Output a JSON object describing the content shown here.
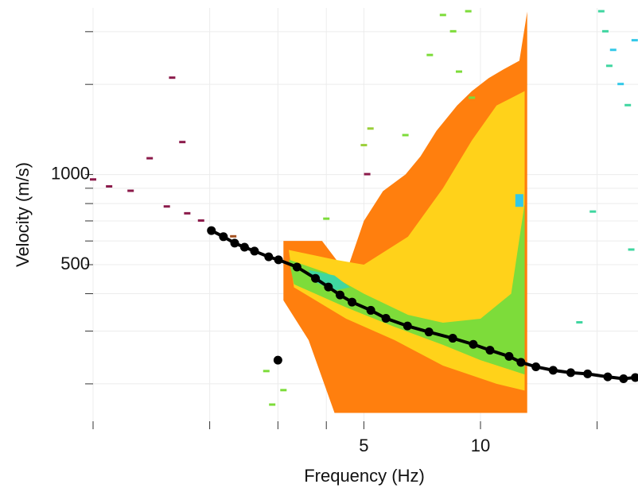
{
  "chart_data": {
    "type": "dispersion",
    "xlabel": "Frequency (Hz)",
    "ylabel": "Velocity (m/s)",
    "xscale": "log",
    "yscale": "log",
    "grid": true,
    "xlim": [
      1,
      25.5
    ],
    "ylim": [
      150,
      3600
    ],
    "xticks": [
      5,
      10
    ],
    "xticks_minor": [
      1,
      2,
      3,
      4,
      20
    ],
    "yticks": [
      500,
      1000
    ],
    "yticks_minor": [
      200,
      300,
      400,
      600,
      700,
      800,
      900,
      2000,
      3000
    ],
    "zones": [
      {
        "color": "#ff7f0e",
        "points": [
          [
            3.1,
            600
          ],
          [
            3.9,
            600
          ],
          [
            4.5,
            470
          ],
          [
            5,
            700
          ],
          [
            5.6,
            880
          ],
          [
            6.4,
            1000
          ],
          [
            7,
            1150
          ],
          [
            7.7,
            1400
          ],
          [
            8.7,
            1700
          ],
          [
            9.5,
            1900
          ],
          [
            10.5,
            2100
          ],
          [
            11.5,
            2250
          ],
          [
            12.6,
            2400
          ],
          [
            13.2,
            3500
          ],
          [
            13.2,
            160
          ],
          [
            4.2,
            160
          ],
          [
            3.6,
            280
          ],
          [
            3.1,
            380
          ]
        ]
      },
      {
        "color": "#ffd21a",
        "points": [
          [
            3.2,
            560
          ],
          [
            4.2,
            520
          ],
          [
            5,
            500
          ],
          [
            6.5,
            620
          ],
          [
            8,
            900
          ],
          [
            9.5,
            1300
          ],
          [
            11,
            1700
          ],
          [
            13,
            1900
          ],
          [
            13,
            190
          ],
          [
            11,
            200
          ],
          [
            8,
            230
          ],
          [
            6,
            280
          ],
          [
            4.5,
            330
          ],
          [
            3.3,
            420
          ]
        ]
      },
      {
        "color": "#7ddc3a",
        "points": [
          [
            3.2,
            520
          ],
          [
            4,
            470
          ],
          [
            5,
            400
          ],
          [
            6.5,
            340
          ],
          [
            8,
            320
          ],
          [
            10,
            330
          ],
          [
            12,
            400
          ],
          [
            13,
            800
          ],
          [
            13,
            215
          ],
          [
            10,
            240
          ],
          [
            8,
            270
          ],
          [
            6,
            310
          ],
          [
            4.5,
            360
          ],
          [
            3.3,
            430
          ]
        ]
      },
      {
        "color": "#3fd6a0",
        "points": [
          [
            3.6,
            480
          ],
          [
            4.2,
            460
          ],
          [
            4.6,
            420
          ],
          [
            4.2,
            410
          ],
          [
            3.7,
            440
          ]
        ]
      },
      {
        "color": "#33c8e8",
        "points": [
          [
            12.3,
            860
          ],
          [
            12.9,
            860
          ],
          [
            12.9,
            780
          ],
          [
            12.3,
            780
          ]
        ]
      }
    ],
    "cells": [
      {
        "f": 1.0,
        "v": 960,
        "color": "#8b1a4a"
      },
      {
        "f": 1.1,
        "v": 910,
        "color": "#8b1a4a"
      },
      {
        "f": 1.25,
        "v": 880,
        "color": "#8b1a4a"
      },
      {
        "f": 1.4,
        "v": 1130,
        "color": "#8b1a4a"
      },
      {
        "f": 1.55,
        "v": 780,
        "color": "#8b1a4a"
      },
      {
        "f": 1.7,
        "v": 1280,
        "color": "#8b1a4a"
      },
      {
        "f": 1.6,
        "v": 2100,
        "color": "#8b1a4a"
      },
      {
        "f": 1.75,
        "v": 740,
        "color": "#8b1a4a"
      },
      {
        "f": 1.9,
        "v": 700,
        "color": "#8b1a4a"
      },
      {
        "f": 2.3,
        "v": 620,
        "color": "#a35020"
      },
      {
        "f": 2.6,
        "v": 550,
        "color": "#7ddc3a"
      },
      {
        "f": 2.8,
        "v": 220,
        "color": "#7ddc3a"
      },
      {
        "f": 3.1,
        "v": 190,
        "color": "#7ddc3a"
      },
      {
        "f": 2.9,
        "v": 170,
        "color": "#7ddc3a"
      },
      {
        "f": 4.0,
        "v": 710,
        "color": "#7ddc3a"
      },
      {
        "f": 5.0,
        "v": 1250,
        "color": "#9bcf3a"
      },
      {
        "f": 5.1,
        "v": 1000,
        "color": "#8b1a4a"
      },
      {
        "f": 5.2,
        "v": 1420,
        "color": "#9bcf3a"
      },
      {
        "f": 6.4,
        "v": 1350,
        "color": "#7ddc3a"
      },
      {
        "f": 7.4,
        "v": 2500,
        "color": "#7ddc3a"
      },
      {
        "f": 8.0,
        "v": 3400,
        "color": "#7ddc3a"
      },
      {
        "f": 8.5,
        "v": 3000,
        "color": "#7ddc3a"
      },
      {
        "f": 8.8,
        "v": 2200,
        "color": "#7ddc3a"
      },
      {
        "f": 9.3,
        "v": 3500,
        "color": "#7ddc3a"
      },
      {
        "f": 9.5,
        "v": 1800,
        "color": "#7ddc3a"
      },
      {
        "f": 20.5,
        "v": 3500,
        "color": "#3fd6a0"
      },
      {
        "f": 21,
        "v": 3000,
        "color": "#3fd6a0"
      },
      {
        "f": 22,
        "v": 2600,
        "color": "#33c8e8"
      },
      {
        "f": 21.5,
        "v": 2300,
        "color": "#3fd6a0"
      },
      {
        "f": 23,
        "v": 2000,
        "color": "#33c8e8"
      },
      {
        "f": 24,
        "v": 1700,
        "color": "#3fd6a0"
      },
      {
        "f": 25,
        "v": 2800,
        "color": "#33c8e8"
      },
      {
        "f": 19.5,
        "v": 750,
        "color": "#3fd6a0"
      },
      {
        "f": 24.5,
        "v": 560,
        "color": "#3fd6a0"
      },
      {
        "f": 18,
        "v": 320,
        "color": "#3fd6a0"
      }
    ],
    "series": [
      {
        "color": "#000000",
        "x": [
          2.02,
          2.17,
          2.32,
          2.46,
          2.61,
          2.84,
          3.01,
          3.36,
          3.75,
          4.05,
          4.34,
          4.66,
          5.21,
          5.7,
          6.48,
          7.36,
          8.48,
          9.58,
          10.58,
          11.85,
          12.72,
          13.9,
          15.4,
          17.1,
          18.9,
          21.3,
          23.4,
          25.1
        ],
        "values": [
          650,
          620,
          590,
          572,
          555,
          531,
          519,
          491,
          450,
          421,
          396,
          375,
          352,
          331,
          312,
          298,
          284,
          271,
          259,
          247,
          236,
          228,
          222,
          218,
          216,
          211,
          208,
          210
        ]
      },
      {
        "color": "#000000",
        "x": [
          3.0
        ],
        "values": [
          240
        ]
      }
    ]
  }
}
